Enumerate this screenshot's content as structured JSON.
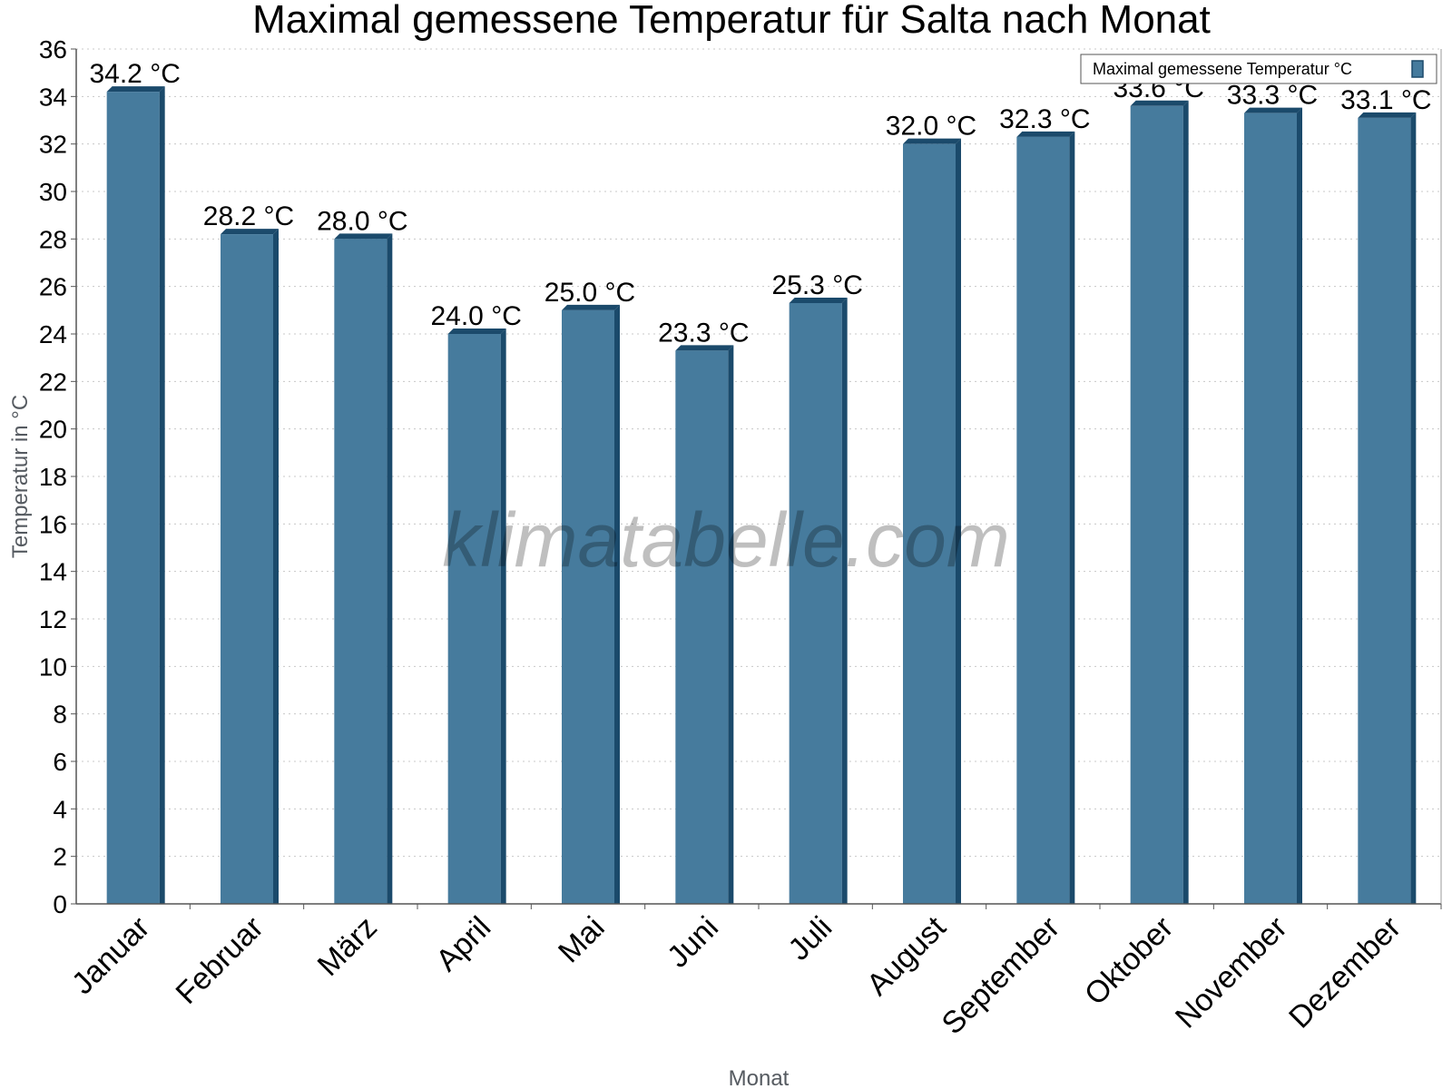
{
  "chart_data": {
    "type": "bar",
    "title": "Maximal gemessene Temperatur für Salta nach Monat",
    "xlabel": "Monat",
    "ylabel": "Temperatur in °C",
    "unit": "°C",
    "categories": [
      "Januar",
      "Februar",
      "März",
      "April",
      "Mai",
      "Juni",
      "Juli",
      "August",
      "September",
      "Oktober",
      "November",
      "Dezember"
    ],
    "series": [
      {
        "name": "Maximal gemessene Temperatur °C",
        "values": [
          34.2,
          28.2,
          28.0,
          24.0,
          25.0,
          23.3,
          25.3,
          32.0,
          32.3,
          33.6,
          33.3,
          33.1
        ],
        "color": "#467b9d"
      }
    ],
    "data_labels": [
      "34.2 °C",
      "28.2 °C",
      "28.0 °C",
      "24.0 °C",
      "25.0 °C",
      "23.3 °C",
      "25.3 °C",
      "32.0 °C",
      "32.3 °C",
      "33.6 °C",
      "33.3 °C",
      "33.1 °C"
    ],
    "ylim": [
      0,
      36
    ],
    "yticks": [
      0,
      2,
      4,
      6,
      8,
      10,
      12,
      14,
      16,
      18,
      20,
      22,
      24,
      26,
      28,
      30,
      32,
      34,
      36
    ],
    "grid": true,
    "legend": "top-right",
    "watermark": "klimatabelle.com",
    "colors": {
      "bar": "#467b9d",
      "bar_edge": "#1b4a6b",
      "grid": "#c8c8c8"
    }
  }
}
